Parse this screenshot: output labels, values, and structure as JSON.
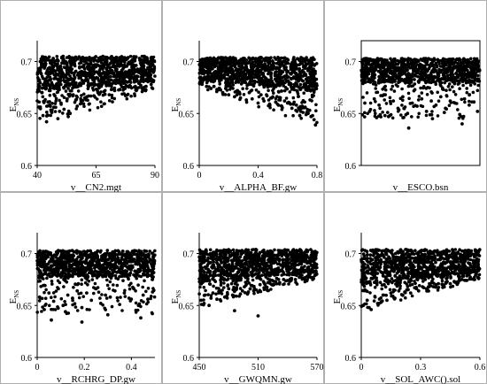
{
  "chart_data": [
    {
      "type": "scatter",
      "xlabel": "v__CN2.mgt",
      "ylabel": "E",
      "ylabel_sub": "NS",
      "xlim": [
        40,
        90
      ],
      "ylim": [
        0.6,
        0.72
      ],
      "xticks": [
        "40",
        "65",
        "90"
      ],
      "xtick_values": [
        40,
        65,
        90
      ],
      "yticks": [
        "0.6",
        "0.65",
        "0.7"
      ],
      "ytick_values": [
        0.6,
        0.65,
        0.7
      ],
      "point_color": "#000000",
      "band": {
        "x_range": [
          40,
          90
        ],
        "y_top": 0.705,
        "dense_bottom_start": 0.672,
        "dense_bottom_end": 0.682,
        "tail_min_start": 0.638,
        "tail_min_end": 0.672
      },
      "x": [
        41.2,
        42.5,
        43.1,
        44.0,
        45.3,
        46.2,
        47.5,
        48.8,
        50.1,
        51.4,
        52.7,
        54.0,
        55.3,
        57.0,
        58.6,
        60.2,
        62.0,
        64.1,
        66.3,
        68.4,
        70.6,
        72.9,
        75.1,
        77.3,
        79.6,
        81.8,
        84.0,
        86.2,
        88.4,
        42.0,
        44.6,
        47.1,
        49.5,
        53.2,
        56.4,
        61.1,
        65.8,
        71.5,
        76.8,
        83.2,
        43.5,
        46.8,
        51.0,
        55.8,
        59.3,
        63.4,
        67.9,
        73.6,
        78.4,
        85.5
      ],
      "y": [
        0.655,
        0.648,
        0.662,
        0.642,
        0.658,
        0.651,
        0.667,
        0.645,
        0.66,
        0.654,
        0.664,
        0.65,
        0.668,
        0.657,
        0.662,
        0.665,
        0.659,
        0.667,
        0.669,
        0.671,
        0.668,
        0.672,
        0.673,
        0.674,
        0.676,
        0.675,
        0.677,
        0.676,
        0.678,
        0.67,
        0.661,
        0.656,
        0.652,
        0.647,
        0.663,
        0.666,
        0.67,
        0.673,
        0.675,
        0.679,
        0.704,
        0.703,
        0.705,
        0.702,
        0.704,
        0.703,
        0.705,
        0.704,
        0.703,
        0.705
      ]
    },
    {
      "type": "scatter",
      "xlabel": "v__ALPHA_BF.gw",
      "ylabel": "E",
      "ylabel_sub": "NS",
      "xlim": [
        0,
        0.8
      ],
      "ylim": [
        0.6,
        0.72
      ],
      "xticks": [
        "0",
        "0.4",
        "0.8"
      ],
      "xtick_values": [
        0,
        0.4,
        0.8
      ],
      "yticks": [
        "0.6",
        "0.65",
        "0.7"
      ],
      "ytick_values": [
        0.6,
        0.65,
        0.7
      ],
      "point_color": "#000000",
      "band": {
        "x_range": [
          0.0,
          0.8
        ],
        "y_top": 0.704,
        "dense_bottom_start": 0.683,
        "dense_bottom_end": 0.672,
        "tail_min_start": 0.675,
        "tail_min_end": 0.638
      },
      "x": [
        0.02,
        0.05,
        0.08,
        0.12,
        0.16,
        0.2,
        0.24,
        0.28,
        0.32,
        0.36,
        0.4,
        0.44,
        0.48,
        0.52,
        0.56,
        0.6,
        0.63,
        0.66,
        0.69,
        0.72,
        0.74,
        0.76,
        0.78,
        0.79,
        0.75,
        0.7,
        0.64,
        0.58,
        0.5,
        0.42,
        0.34,
        0.26,
        0.18,
        0.1,
        0.77,
        0.73,
        0.68,
        0.62,
        0.55,
        0.46
      ],
      "y": [
        0.678,
        0.676,
        0.674,
        0.673,
        0.67,
        0.668,
        0.666,
        0.665,
        0.663,
        0.664,
        0.66,
        0.662,
        0.658,
        0.661,
        0.657,
        0.66,
        0.655,
        0.658,
        0.652,
        0.656,
        0.65,
        0.647,
        0.644,
        0.639,
        0.653,
        0.657,
        0.659,
        0.662,
        0.666,
        0.668,
        0.67,
        0.672,
        0.674,
        0.676,
        0.648,
        0.651,
        0.654,
        0.659,
        0.663,
        0.667
      ]
    },
    {
      "type": "scatter",
      "xlabel": "v__ESCO.bsn",
      "ylabel": "E",
      "ylabel_sub": "NS",
      "xlim": [
        0,
        1
      ],
      "ylim": [
        0.6,
        0.72
      ],
      "xticks": [],
      "xtick_values": [],
      "yticks": [
        "0.6",
        "0.65",
        "0.7"
      ],
      "ytick_values": [
        0.6,
        0.65,
        0.7
      ],
      "point_color": "#000000",
      "band": {
        "x_range": [
          0.0,
          1.0
        ],
        "y_top": 0.703,
        "dense_bottom_start": 0.68,
        "dense_bottom_end": 0.68,
        "tail_min_start": 0.645,
        "tail_min_end": 0.645
      },
      "x": [
        0.03,
        0.07,
        0.11,
        0.15,
        0.19,
        0.23,
        0.27,
        0.31,
        0.35,
        0.39,
        0.43,
        0.47,
        0.51,
        0.55,
        0.59,
        0.63,
        0.67,
        0.71,
        0.75,
        0.79,
        0.83,
        0.87,
        0.91,
        0.95,
        0.98,
        0.4,
        0.6,
        0.85,
        0.2,
        0.7
      ],
      "y": [
        0.66,
        0.652,
        0.664,
        0.658,
        0.668,
        0.647,
        0.662,
        0.655,
        0.666,
        0.65,
        0.66,
        0.657,
        0.664,
        0.652,
        0.662,
        0.658,
        0.666,
        0.655,
        0.662,
        0.66,
        0.649,
        0.664,
        0.658,
        0.661,
        0.652,
        0.636,
        0.645,
        0.64,
        0.648,
        0.651
      ]
    },
    {
      "type": "scatter",
      "xlabel": "v__RCHRG_DP.gw",
      "ylabel": "E",
      "ylabel_sub": "NS",
      "xlim": [
        0,
        0.5
      ],
      "ylim": [
        0.6,
        0.72
      ],
      "xticks": [
        "0",
        "0.2",
        "0.4"
      ],
      "xtick_values": [
        0,
        0.2,
        0.4
      ],
      "yticks": [
        "0.6",
        "0.65",
        "0.7"
      ],
      "ytick_values": [
        0.6,
        0.65,
        0.7
      ],
      "point_color": "#000000",
      "band": {
        "x_range": [
          0.0,
          0.5
        ],
        "y_top": 0.703,
        "dense_bottom_start": 0.678,
        "dense_bottom_end": 0.678,
        "tail_min_start": 0.642,
        "tail_min_end": 0.642
      },
      "x": [
        0.01,
        0.03,
        0.05,
        0.07,
        0.09,
        0.11,
        0.13,
        0.15,
        0.17,
        0.19,
        0.21,
        0.23,
        0.25,
        0.27,
        0.29,
        0.31,
        0.33,
        0.35,
        0.37,
        0.39,
        0.41,
        0.43,
        0.45,
        0.47,
        0.49,
        0.06,
        0.19,
        0.3,
        0.44,
        0.12
      ],
      "y": [
        0.658,
        0.646,
        0.662,
        0.654,
        0.666,
        0.65,
        0.66,
        0.657,
        0.664,
        0.648,
        0.662,
        0.655,
        0.666,
        0.652,
        0.66,
        0.658,
        0.664,
        0.651,
        0.662,
        0.657,
        0.666,
        0.65,
        0.66,
        0.656,
        0.663,
        0.636,
        0.634,
        0.641,
        0.638,
        0.644
      ]
    },
    {
      "type": "scatter",
      "xlabel": "v__GWQMN.gw",
      "ylabel": "E",
      "ylabel_sub": "NS",
      "xlim": [
        450,
        570
      ],
      "ylim": [
        0.6,
        0.72
      ],
      "xticks": [
        "450",
        "510",
        "570"
      ],
      "xtick_values": [
        450,
        510,
        570
      ],
      "yticks": [
        "0.6",
        "0.65",
        "0.7"
      ],
      "ytick_values": [
        0.6,
        0.65,
        0.7
      ],
      "point_color": "#000000",
      "band": {
        "x_range": [
          450,
          570
        ],
        "y_top": 0.704,
        "dense_bottom_start": 0.672,
        "dense_bottom_end": 0.683,
        "tail_min_start": 0.648,
        "tail_min_end": 0.675
      },
      "x": [
        452,
        456,
        460,
        464,
        468,
        472,
        476,
        480,
        484,
        488,
        492,
        496,
        500,
        504,
        508,
        512,
        516,
        520,
        524,
        528,
        532,
        536,
        540,
        544,
        548,
        552,
        556,
        560,
        564,
        568,
        455,
        462,
        470,
        478,
        486,
        494,
        502,
        510,
        518,
        526
      ],
      "y": [
        0.655,
        0.66,
        0.65,
        0.662,
        0.656,
        0.664,
        0.658,
        0.666,
        0.66,
        0.667,
        0.661,
        0.668,
        0.663,
        0.669,
        0.665,
        0.67,
        0.667,
        0.672,
        0.67,
        0.673,
        0.672,
        0.675,
        0.674,
        0.676,
        0.675,
        0.677,
        0.676,
        0.678,
        0.677,
        0.679,
        0.652,
        0.657,
        0.662,
        0.659,
        0.645,
        0.664,
        0.666,
        0.64,
        0.668,
        0.67
      ]
    },
    {
      "type": "scatter",
      "xlabel": "v__SOL_AWC().sol",
      "ylabel": "E",
      "ylabel_sub": "NS",
      "xlim": [
        0,
        0.6
      ],
      "ylim": [
        0.6,
        0.72
      ],
      "xticks": [
        "0",
        "0.3",
        "0.6"
      ],
      "xtick_values": [
        0,
        0.3,
        0.6
      ],
      "yticks": [
        "0.6",
        "0.65",
        "0.7"
      ],
      "ytick_values": [
        0.6,
        0.65,
        0.7
      ],
      "point_color": "#000000",
      "band": {
        "x_range": [
          0.0,
          0.6
        ],
        "y_top": 0.704,
        "dense_bottom_start": 0.67,
        "dense_bottom_end": 0.683,
        "tail_min_start": 0.645,
        "tail_min_end": 0.675
      },
      "x": [
        0.01,
        0.03,
        0.05,
        0.07,
        0.09,
        0.11,
        0.13,
        0.15,
        0.17,
        0.19,
        0.21,
        0.23,
        0.25,
        0.27,
        0.29,
        0.31,
        0.33,
        0.35,
        0.37,
        0.39,
        0.41,
        0.43,
        0.45,
        0.47,
        0.49,
        0.51,
        0.53,
        0.55,
        0.57,
        0.59,
        0.04,
        0.1,
        0.16,
        0.22,
        0.28,
        0.34
      ],
      "y": [
        0.65,
        0.655,
        0.646,
        0.658,
        0.652,
        0.66,
        0.655,
        0.662,
        0.657,
        0.664,
        0.66,
        0.665,
        0.662,
        0.667,
        0.664,
        0.668,
        0.666,
        0.669,
        0.668,
        0.671,
        0.67,
        0.672,
        0.671,
        0.673,
        0.672,
        0.675,
        0.674,
        0.676,
        0.675,
        0.677,
        0.648,
        0.653,
        0.659,
        0.663,
        0.666,
        0.668
      ]
    }
  ]
}
